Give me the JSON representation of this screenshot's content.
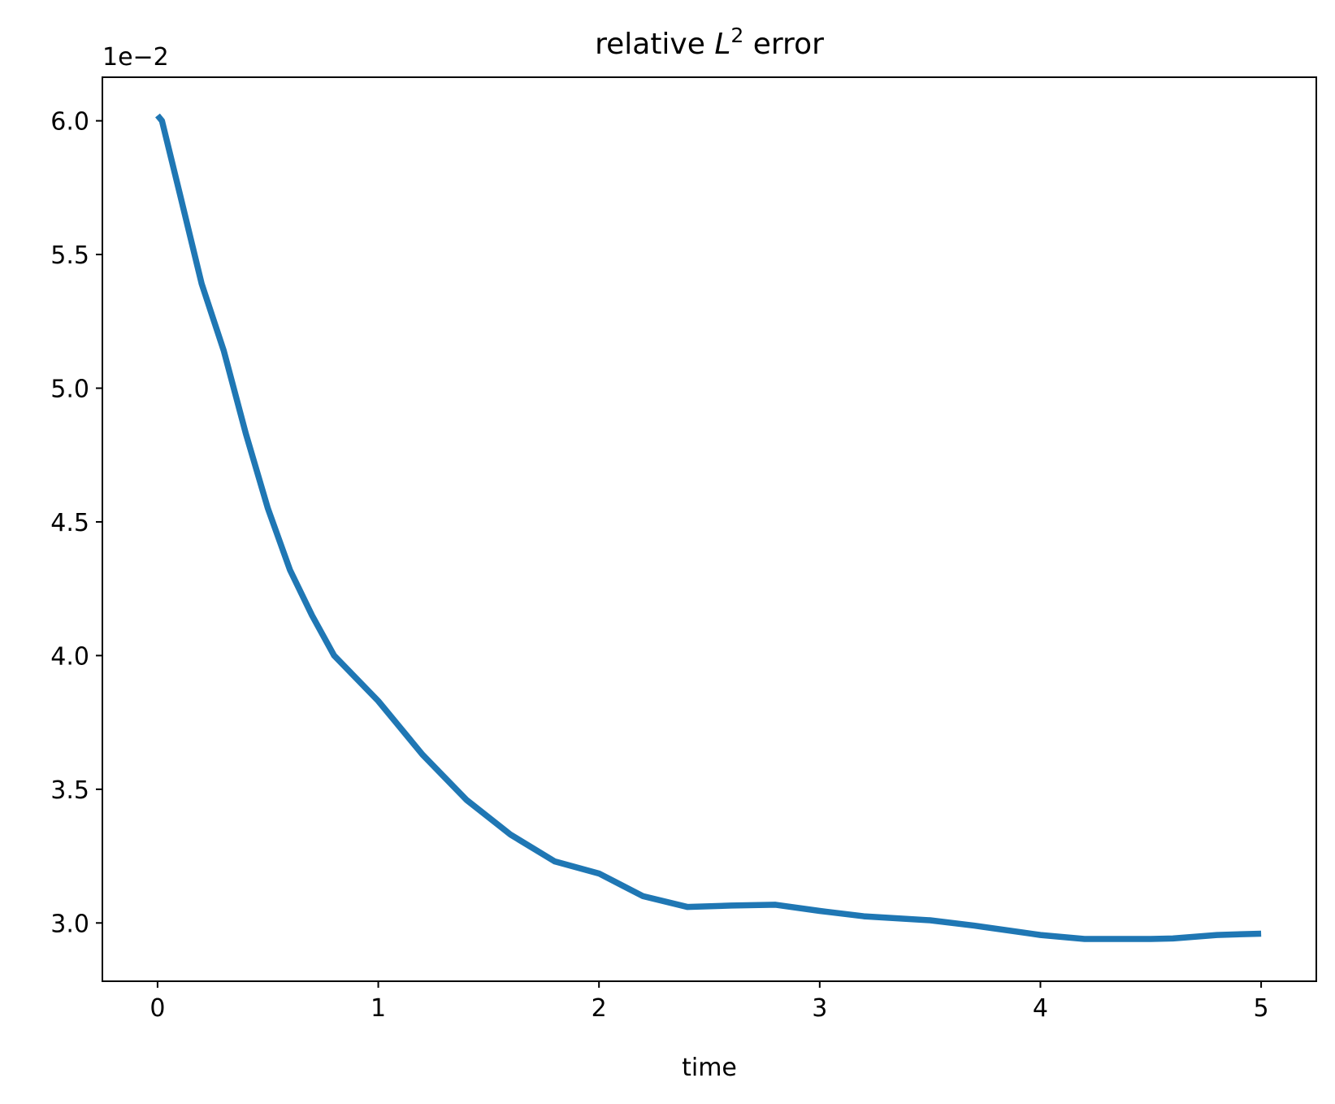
{
  "chart_data": {
    "type": "line",
    "title": [
      "relative ",
      "L",
      "2",
      " error"
    ],
    "x_label": "time",
    "y_offset_label": "1e−2",
    "x": [
      0,
      0.02,
      0.1,
      0.2,
      0.3,
      0.4,
      0.5,
      0.6,
      0.7,
      0.8,
      1.0,
      1.2,
      1.4,
      1.6,
      1.8,
      2.0,
      2.2,
      2.4,
      2.6,
      2.8,
      3.0,
      3.2,
      3.5,
      3.7,
      4.0,
      4.2,
      4.5,
      4.6,
      4.8,
      5.0
    ],
    "series": [
      {
        "color": "#1f77b4",
        "values": [
          6.02,
          6.0,
          5.73,
          5.39,
          5.14,
          4.83,
          4.55,
          4.32,
          4.15,
          4.0,
          3.83,
          3.63,
          3.46,
          3.33,
          3.23,
          3.185,
          3.1,
          3.06,
          3.065,
          3.068,
          3.045,
          3.025,
          3.01,
          2.99,
          2.955,
          2.94,
          2.94,
          2.942,
          2.955,
          2.96
        ]
      }
    ],
    "xlim": [
      -0.25,
      5.25
    ],
    "xticks": [
      0,
      1,
      2,
      3,
      4,
      5
    ],
    "ylim": [
      2.782,
      6.163
    ],
    "yticks": [
      {
        "value": 3,
        "label": "3.0"
      },
      3.5,
      {
        "value": 4,
        "label": "4.0"
      },
      4.5,
      {
        "value": 5,
        "label": "5.0"
      },
      5.5,
      {
        "value": 6,
        "label": "6.0"
      }
    ],
    "grid": false
  }
}
